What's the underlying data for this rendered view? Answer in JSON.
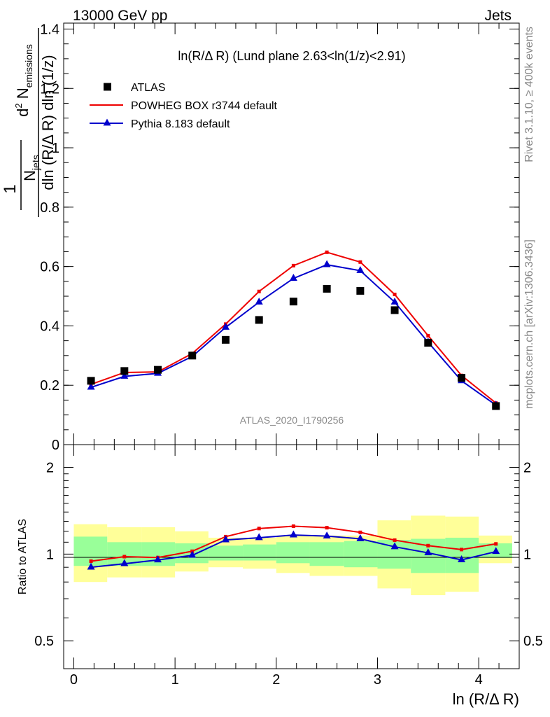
{
  "header": {
    "left": "13000 GeV pp",
    "right": "Jets"
  },
  "side": {
    "top": "Rivet 3.1.10, ≥ 400k events",
    "bottom": "mcplots.cern.ch [arXiv:1306.3436]"
  },
  "watermark": "ATLAS_2020_I1790256",
  "colors": {
    "data": "#000000",
    "powheg": "#ee0000",
    "pythia": "#0000cc",
    "band_outer": "#ffff99",
    "band_inner": "#99ff99"
  },
  "chart_data": [
    {
      "type": "scatter",
      "title": "ln(R/Δ R) (Lund plane 2.63<ln(1/z)<2.91)",
      "xlabel": "ln (R/Δ R)",
      "ylabel": "1/N_jets d²N_emissions / dln(R/Δ R) dln(1/z)",
      "xlim": [
        -0.1,
        4.4
      ],
      "ylim": [
        0,
        1.42
      ],
      "x": [
        0.17,
        0.5,
        0.83,
        1.17,
        1.5,
        1.83,
        2.17,
        2.5,
        2.83,
        3.17,
        3.5,
        3.83,
        4.17
      ],
      "series": [
        {
          "name": "ATLAS",
          "style": "markers",
          "values": [
            0.215,
            0.248,
            0.252,
            0.3,
            0.353,
            0.42,
            0.482,
            0.525,
            0.518,
            0.453,
            0.343,
            0.225,
            0.13
          ]
        },
        {
          "name": "POWHEG BOX r3744 default",
          "style": "line",
          "values": [
            0.203,
            0.243,
            0.245,
            0.307,
            0.406,
            0.516,
            0.603,
            0.648,
            0.615,
            0.506,
            0.367,
            0.233,
            0.14
          ]
        },
        {
          "name": "Pythia 8.183 default",
          "style": "line-triangles",
          "values": [
            0.193,
            0.23,
            0.24,
            0.297,
            0.395,
            0.48,
            0.56,
            0.606,
            0.586,
            0.48,
            0.345,
            0.215,
            0.133
          ]
        }
      ],
      "y_ticks": [
        "0",
        "0.2",
        "0.4",
        "0.6",
        "0.8",
        "1",
        "1.2",
        "1.4"
      ],
      "x_ticks": [
        "0",
        "1",
        "2",
        "3",
        "4"
      ]
    },
    {
      "type": "line",
      "ylabel": "Ratio to ATLAS",
      "xlabel": "ln (R/Δ R)",
      "xlim": [
        -0.1,
        4.4
      ],
      "ylim": [
        0.4,
        2.4
      ],
      "log_y": true,
      "y_ticks": [
        "0.5",
        "1",
        "2"
      ],
      "x": [
        0.17,
        0.5,
        0.83,
        1.17,
        1.5,
        1.83,
        2.17,
        2.5,
        2.83,
        3.17,
        3.5,
        3.83,
        4.17
      ],
      "bins": [
        0.0,
        0.33,
        0.67,
        1.0,
        1.33,
        1.67,
        2.0,
        2.33,
        2.67,
        3.0,
        3.33,
        3.67,
        4.0,
        4.33
      ],
      "band_outer": [
        [
          0.8,
          1.27
        ],
        [
          0.83,
          1.24
        ],
        [
          0.83,
          1.24
        ],
        [
          0.87,
          1.2
        ],
        [
          0.9,
          1.14
        ],
        [
          0.89,
          1.14
        ],
        [
          0.86,
          1.16
        ],
        [
          0.84,
          1.16
        ],
        [
          0.84,
          1.16
        ],
        [
          0.76,
          1.31
        ],
        [
          0.72,
          1.36
        ],
        [
          0.74,
          1.35
        ],
        [
          0.93,
          1.16
        ]
      ],
      "band_inner": [
        [
          0.91,
          1.15
        ],
        [
          0.91,
          1.1
        ],
        [
          0.91,
          1.1
        ],
        [
          0.93,
          1.09
        ],
        [
          0.95,
          1.07
        ],
        [
          0.95,
          1.08
        ],
        [
          0.93,
          1.1
        ],
        [
          0.91,
          1.1
        ],
        [
          0.9,
          1.11
        ],
        [
          0.89,
          1.12
        ],
        [
          0.86,
          1.13
        ],
        [
          0.86,
          1.14
        ],
        [
          0.97,
          1.09
        ]
      ],
      "series": [
        {
          "name": "POWHEG BOX r3744 default",
          "values": [
            0.945,
            0.98,
            0.973,
            1.023,
            1.15,
            1.227,
            1.25,
            1.235,
            1.19,
            1.118,
            1.07,
            1.037,
            1.085
          ]
        },
        {
          "name": "Pythia 8.183 default",
          "values": [
            0.9,
            0.926,
            0.954,
            0.99,
            1.12,
            1.14,
            1.165,
            1.155,
            1.13,
            1.06,
            1.01,
            0.955,
            1.02
          ]
        }
      ]
    }
  ]
}
